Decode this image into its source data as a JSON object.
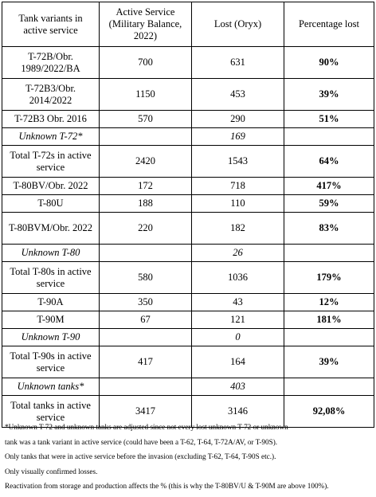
{
  "header": {
    "col1": "Tank variants in active service",
    "col2": "Active Service (Military Balance, 2022)",
    "col3": "Lost (Oryx)",
    "col4": "Percentage lost"
  },
  "rows": [
    {
      "label": "T-72B/Obr. 1989/2022/BA",
      "active": "700",
      "lost": "631",
      "pct": "90%"
    },
    {
      "label": "T-72B3/Obr. 2014/2022",
      "active": "1150",
      "lost": "453",
      "pct": "39%"
    },
    {
      "label": "T-72B3 Obr. 2016",
      "active": "570",
      "lost": "290",
      "pct": "51%"
    },
    {
      "label": "Unknown T-72*",
      "lost": "169"
    },
    {
      "label": "Total T-72s in active service",
      "active": "2420",
      "lost": "1543",
      "pct": "64%"
    },
    {
      "label": "T-80BV/Obr. 2022",
      "active": "172",
      "lost": "718",
      "pct": "417%"
    },
    {
      "label": "T-80U",
      "active": "188",
      "lost": "110",
      "pct": "59%"
    },
    {
      "label": "T-80BVM/Obr. 2022",
      "active": "220",
      "lost": "182",
      "pct": "83%"
    },
    {
      "label": "Unknown T-80",
      "lost": "26"
    },
    {
      "label": "Total T-80s in active service",
      "active": "580",
      "lost": "1036",
      "pct": "179%"
    },
    {
      "label": "T-90A",
      "active": "350",
      "lost": "43",
      "pct": "12%"
    },
    {
      "label": "T-90M",
      "active": "67",
      "lost": "121",
      "pct": "181%"
    },
    {
      "label": "Unknown T-90",
      "lost": "0"
    },
    {
      "label": "Total T-90s in active service",
      "active": "417",
      "lost": "164",
      "pct": "39%"
    },
    {
      "label": "Unknown tanks*",
      "lost": "403"
    },
    {
      "label": "Total tanks in active service",
      "active": "3417",
      "lost": "3146",
      "pct": "92,08%"
    }
  ],
  "notes": [
    "*Unknown T-72 and unknown tanks are adjusted since not every lost unknown T-72 or unknown",
    "tank was a tank variant in active service (could have been a T-62, T-64, T-72A/AV, or T-90S).",
    "Only tanks that were in active service before the invasion (excluding T-62, T-64, T-90S etc.).",
    "Only visually confirmed losses.",
    "Reactivation from storage and production affects the % (this is why the T-80BV/U & T-90M are above 100%)."
  ]
}
